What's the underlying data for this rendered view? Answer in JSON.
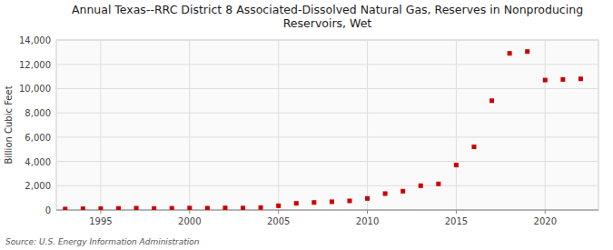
{
  "chart_data": {
    "type": "scatter",
    "title": "Annual Texas--RRC District 8 Associated-Dissolved Natural Gas, Reserves in Nonproducing\nReservoirs, Wet",
    "ylabel": "Billion Cubic Feet",
    "source": "Source: U.S. Energy Information Administration",
    "x": [
      1993,
      1994,
      1995,
      1996,
      1997,
      1998,
      1999,
      2000,
      2001,
      2002,
      2003,
      2004,
      2005,
      2006,
      2007,
      2008,
      2009,
      2010,
      2011,
      2012,
      2013,
      2014,
      2015,
      2016,
      2017,
      2018,
      2019,
      2020,
      2021,
      2022
    ],
    "values": [
      80,
      100,
      110,
      130,
      150,
      120,
      140,
      160,
      150,
      170,
      160,
      200,
      350,
      550,
      620,
      680,
      750,
      950,
      1350,
      1550,
      2000,
      2150,
      3700,
      5200,
      9000,
      12900,
      13050,
      10700,
      10750,
      10800
    ],
    "color": "#cc0000",
    "marker": "square",
    "grid": true,
    "xlim": [
      1992.5,
      2023
    ],
    "xticks": [
      1995,
      2000,
      2005,
      2010,
      2015,
      2020
    ],
    "ylim": [
      0,
      14000
    ],
    "yticks": [
      0,
      {
        "value": 2000,
        "label": "2,000"
      },
      {
        "value": 4000,
        "label": "4,000"
      },
      {
        "value": 6000,
        "label": "6,000"
      },
      {
        "value": 8000,
        "label": "8,000"
      },
      {
        "value": 10000,
        "label": "10,000"
      },
      {
        "value": 12000,
        "label": "12,000"
      },
      {
        "value": 14000,
        "label": "14,000"
      }
    ]
  }
}
